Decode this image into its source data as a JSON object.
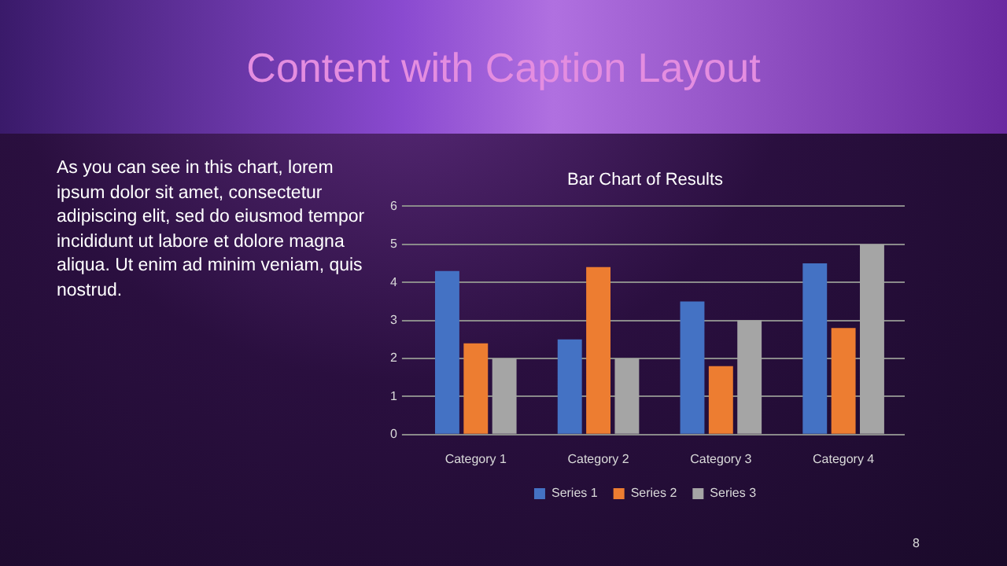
{
  "chart_data": {
    "type": "bar",
    "title": "Content with Caption Layout",
    "subtitle": "Bar Chart of Results",
    "categories": [
      "Category 1",
      "Category 2",
      "Category 3",
      "Category 4"
    ],
    "series": [
      {
        "name": "Series 1",
        "color": "#4472c4",
        "values": [
          4.3,
          2.5,
          3.5,
          4.5
        ]
      },
      {
        "name": "Series 2",
        "color": "#ed7d31",
        "values": [
          2.4,
          4.4,
          1.8,
          2.8
        ]
      },
      {
        "name": "Series 3",
        "color": "#a5a5a5",
        "values": [
          2,
          2,
          3,
          5
        ]
      }
    ],
    "ylim": [
      0,
      6
    ],
    "yticks": [
      0,
      1,
      2,
      3,
      4,
      5,
      6
    ],
    "grid": "y",
    "legend": "bottom",
    "annotations": [
      "As you can see in this chart, lorem ipsum dolor sit amet, consectetur adipiscing elit, sed do eiusmod tempor incididunt ut labore et dolore magna aliqua. Ut enim ad minim veniam, quis nostrud.",
      "8"
    ]
  }
}
